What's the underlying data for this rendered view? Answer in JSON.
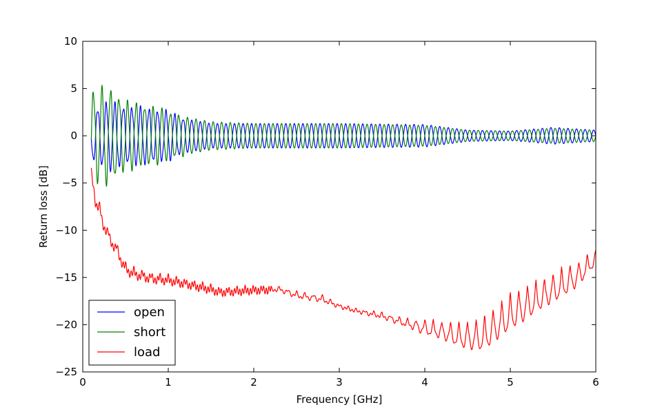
{
  "chart_data": {
    "type": "line",
    "title": "",
    "xlabel": "Frequency [GHz]",
    "ylabel": "Return loss [dB]",
    "xlim": [
      0,
      6
    ],
    "ylim": [
      -25,
      10
    ],
    "xticks": [
      "0",
      "1",
      "2",
      "3",
      "4",
      "5",
      "6"
    ],
    "yticks": [
      "10",
      "5",
      "0",
      "−5",
      "−10",
      "−15",
      "−20",
      "−25"
    ],
    "grid": false,
    "legend_position": "lower-left",
    "series": [
      {
        "name": "open",
        "color": "#0000ff",
        "shape": "oscillating",
        "x": [
          0.1,
          0.3,
          0.5,
          0.8,
          1.0,
          1.2,
          1.5,
          2.0,
          3.0,
          4.0,
          4.5,
          5.0,
          5.5,
          6.0
        ],
        "amp": [
          2.5,
          3.5,
          3.0,
          2.8,
          2.5,
          1.8,
          1.3,
          1.3,
          1.3,
          1.2,
          0.6,
          0.5,
          0.9,
          0.6
        ],
        "period": 0.1,
        "phase": 3.14159
      },
      {
        "name": "short",
        "color": "#008000",
        "shape": "oscillating",
        "x": [
          0.1,
          0.3,
          0.5,
          0.8,
          1.0,
          1.2,
          1.5,
          2.0,
          3.0,
          4.0,
          4.5,
          5.0,
          5.5,
          6.0
        ],
        "amp": [
          4.5,
          5.0,
          3.5,
          3.0,
          2.5,
          2.0,
          1.5,
          1.3,
          1.3,
          1.1,
          0.6,
          0.5,
          0.8,
          0.6
        ],
        "period": 0.1,
        "phase": 0
      },
      {
        "name": "load",
        "color": "#ff0000",
        "shape": "envelope",
        "x": [
          0.1,
          0.15,
          0.2,
          0.3,
          0.4,
          0.5,
          0.6,
          0.8,
          1.0,
          1.2,
          1.5,
          1.6,
          2.0,
          2.3,
          2.5,
          2.8,
          3.0,
          3.2,
          3.5,
          3.8,
          4.0,
          4.2,
          4.4,
          4.6,
          4.7,
          4.8,
          5.0,
          5.2,
          5.4,
          5.6,
          5.8,
          6.0
        ],
        "center": [
          -4.0,
          -6.5,
          -8.0,
          -10.5,
          -12.0,
          -14.0,
          -14.5,
          -15.0,
          -15.2,
          -15.6,
          -16.2,
          -16.5,
          -16.3,
          -16.2,
          -16.8,
          -17.2,
          -18.0,
          -18.5,
          -19.0,
          -19.8,
          -20.2,
          -20.5,
          -21.0,
          -21.0,
          -20.8,
          -20.0,
          -18.5,
          -17.5,
          -16.5,
          -15.5,
          -14.5,
          -12.8
        ],
        "amp": [
          0.5,
          1.5,
          1.5,
          1.0,
          1.0,
          0.8,
          0.8,
          0.7,
          0.6,
          0.5,
          0.5,
          0.5,
          0.4,
          0.4,
          0.6,
          0.6,
          0.3,
          0.3,
          0.5,
          0.8,
          1.5,
          1.8,
          2.5,
          3.2,
          3.6,
          3.5,
          3.8,
          3.5,
          3.0,
          3.0,
          2.5,
          1.5
        ],
        "period": 0.1
      }
    ]
  }
}
